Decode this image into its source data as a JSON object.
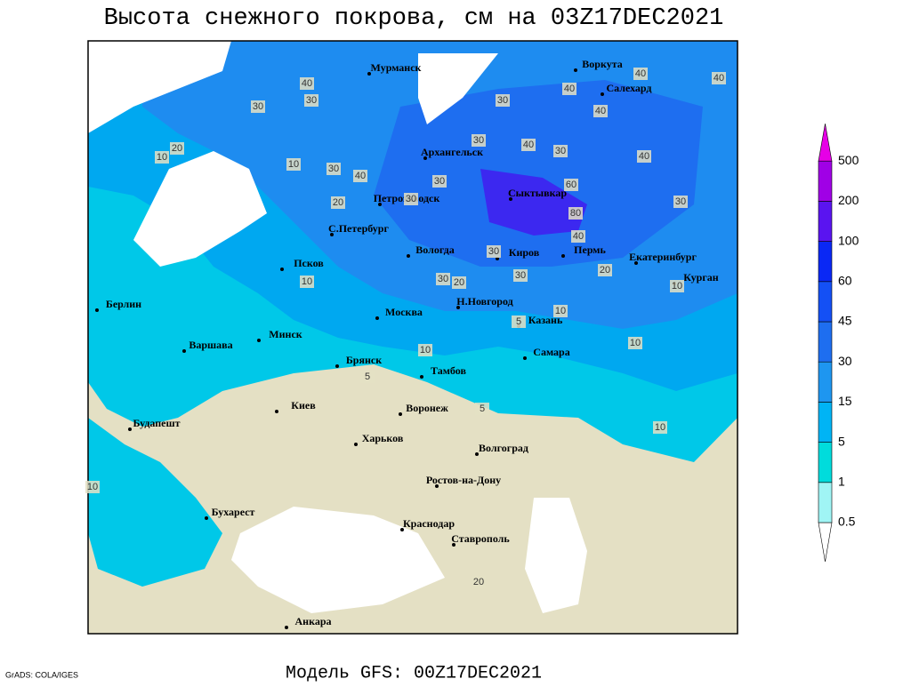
{
  "title": "Высота снежного покрова, см на 03Z17DEC2021",
  "footer": "Модель GFS: 00Z17DEC2021",
  "credit": "GrADS: COLA/IGES",
  "cities": [
    "Мурманск",
    "Воркута",
    "Салехард",
    "Архангельск",
    "Сыктывкар",
    "Петрозаводск",
    "С.Петербург",
    "Вологда",
    "Киров",
    "Пермь",
    "Екатеринбург",
    "Курган",
    "Псков",
    "Н.Новгород",
    "Москва",
    "Казань",
    "Берлин",
    "Варшава",
    "Минск",
    "Брянск",
    "Тамбов",
    "Самара",
    "Воронеж",
    "Киев",
    "Харьков",
    "Волгоград",
    "Будапешт",
    "Ростов-на-Дону",
    "Бухарест",
    "Краснодар",
    "Ставрополь",
    "Анкара"
  ],
  "contour_labels": [
    40,
    30,
    30,
    40,
    40,
    40,
    30,
    10,
    20,
    10,
    30,
    30,
    30,
    40,
    30,
    30,
    40,
    40,
    60,
    80,
    30,
    40,
    20,
    20,
    10,
    30,
    20,
    30,
    10,
    10,
    5,
    10,
    10,
    5,
    5,
    10,
    20,
    10,
    30,
    40
  ],
  "legend": {
    "levels": [
      0.5,
      1,
      5,
      15,
      30,
      45,
      60,
      100,
      200,
      500
    ],
    "colors": [
      "#ffffff",
      "#a0f5f5",
      "#00dcdc",
      "#00b4f5",
      "#1e96f0",
      "#1e6ef0",
      "#1450f5",
      "#0a28f5",
      "#5a14f0",
      "#a000e6",
      "#e600e6"
    ]
  }
}
